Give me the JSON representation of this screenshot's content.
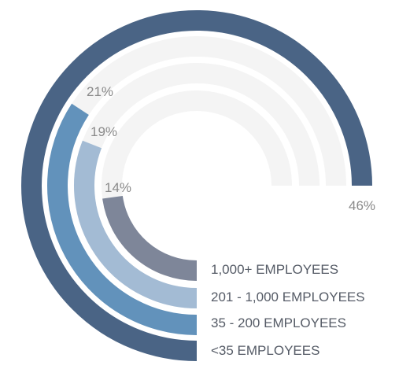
{
  "chart_data": {
    "type": "radial-bar",
    "title": "",
    "series": [
      {
        "name": "<35 EMPLOYEES",
        "value": 46,
        "value_label": "46%",
        "color": "#4a6485"
      },
      {
        "name": "35 - 200 EMPLOYEES",
        "value": 21,
        "value_label": "21%",
        "color": "#6292bb"
      },
      {
        "name": "201 - 1,000 EMPLOYEES",
        "value": 19,
        "value_label": "19%",
        "color": "#a3bbd4"
      },
      {
        "name": "1,000+ EMPLOYEES",
        "value": 14,
        "value_label": "14%",
        "color": "#7e8699"
      }
    ],
    "track_color": "#f4f4f4",
    "value_range": [
      0,
      100
    ]
  }
}
